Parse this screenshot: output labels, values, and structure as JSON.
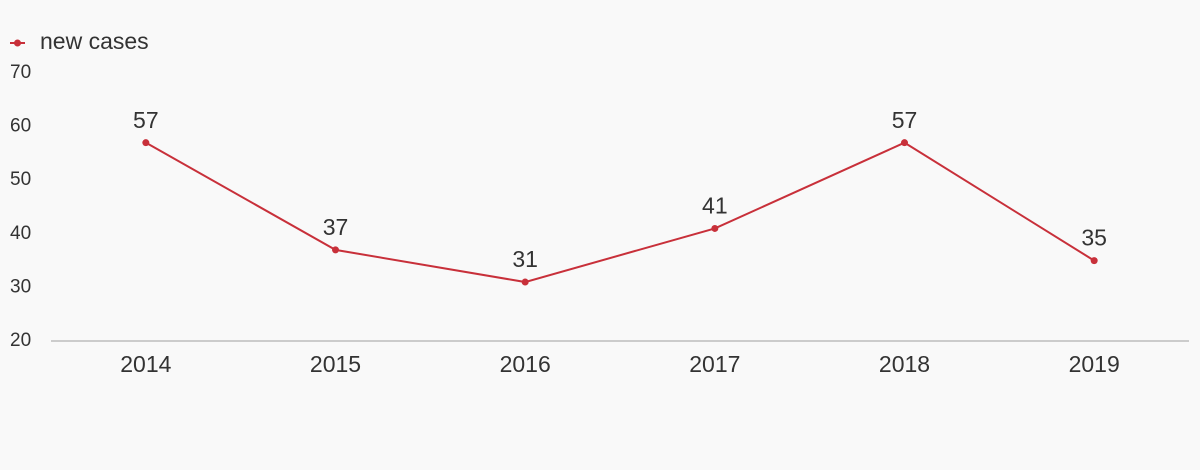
{
  "chart_data": {
    "type": "line",
    "categories": [
      "2014",
      "2015",
      "2016",
      "2017",
      "2018",
      "2019"
    ],
    "series": [
      {
        "name": "new cases",
        "color": "#c8303a",
        "values": [
          57,
          37,
          31,
          41,
          57,
          35
        ]
      }
    ],
    "ylim": [
      20,
      70
    ],
    "yticks": [
      20,
      30,
      40,
      50,
      60,
      70
    ],
    "grid": false,
    "legend": "top-left"
  }
}
